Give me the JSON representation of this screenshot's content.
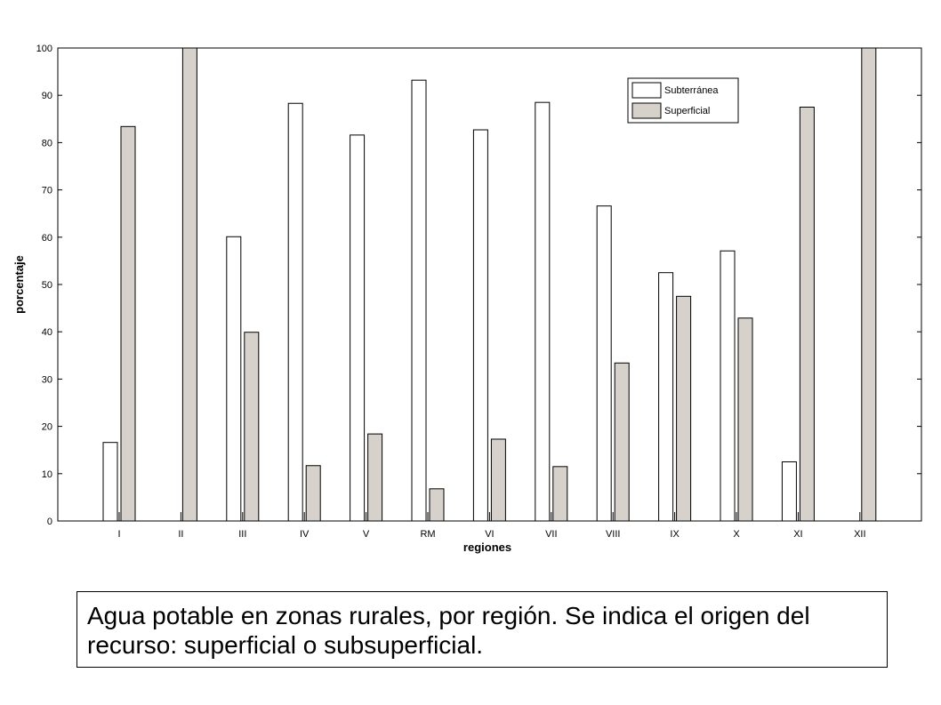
{
  "caption": "Agua potable en zonas rurales, por región. Se indica el origen del recurso: superficial o subsuperficial.",
  "chart_data": {
    "type": "bar",
    "title": "",
    "xlabel": "regiones",
    "ylabel": "porcentaje",
    "ylim": [
      0,
      100
    ],
    "yticks": [
      0,
      10,
      20,
      30,
      40,
      50,
      60,
      70,
      80,
      90,
      100
    ],
    "categories": [
      "I",
      "II",
      "III",
      "IV",
      "V",
      "RM",
      "VI",
      "VII",
      "VIII",
      "IX",
      "X",
      "XI",
      "XII"
    ],
    "series": [
      {
        "name": "Subterránea",
        "color": "#ffffff",
        "values": [
          16.6,
          0,
          60.1,
          88.3,
          81.6,
          93.2,
          82.7,
          88.5,
          66.6,
          52.5,
          57.1,
          12.5,
          0
        ]
      },
      {
        "name": "Superficial",
        "color": "#d6d1ca",
        "values": [
          83.4,
          100,
          39.9,
          11.7,
          18.4,
          6.8,
          17.3,
          11.5,
          33.4,
          47.5,
          42.9,
          87.5,
          100
        ]
      }
    ],
    "legend_position": "top-right",
    "grid": false
  }
}
